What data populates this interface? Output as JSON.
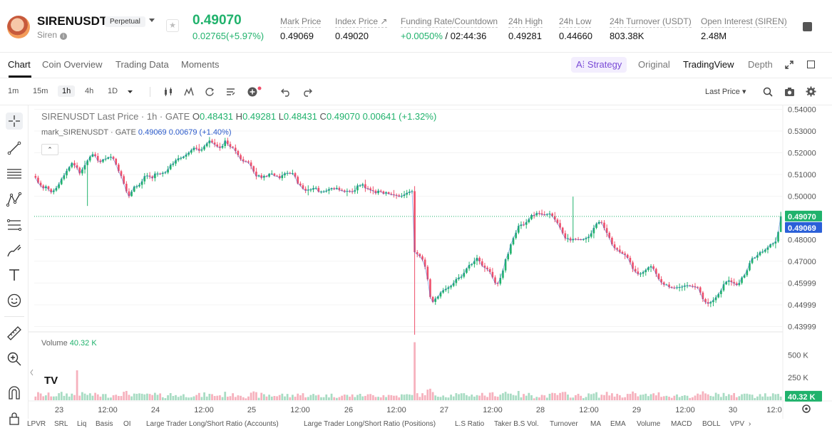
{
  "header": {
    "symbol": "SIRENUSDT",
    "subtitle": "Siren",
    "info_glyph": "i",
    "badge": "Perpetual",
    "favorite_glyph": "★",
    "last_price": "0.49070",
    "change": "0.02765(+5.97%)",
    "stats": [
      {
        "label": "Mark Price",
        "value": "0.49069"
      },
      {
        "label": "Index Price ↗",
        "value": "0.49020"
      },
      {
        "label": "Funding Rate/Countdown",
        "value": "+0.0050%",
        "value2": " / 02:44:36"
      },
      {
        "label": "24h High",
        "value": "0.49281"
      },
      {
        "label": "24h Low",
        "value": "0.44660"
      },
      {
        "label": "24h Turnover (USDT)",
        "value": "803.38K"
      },
      {
        "label": "Open Interest (SIREN)",
        "value": "2.48M"
      }
    ]
  },
  "tabs": {
    "items": [
      "Chart",
      "Coin Overview",
      "Trading Data",
      "Moments"
    ],
    "strategy": "A⁞ Strategy",
    "views": [
      "Original",
      "TradingView",
      "Depth"
    ]
  },
  "toolbar": {
    "timeframes": [
      "1m",
      "15m",
      "1h",
      "4h",
      "1D"
    ],
    "price_source": "Last Price ▾",
    "icons": [
      "candles-icon",
      "indicators-icon",
      "replay-icon",
      "template-icon",
      "add-indicator-icon",
      "undo-icon",
      "redo-icon",
      "search-icon",
      "camera-icon",
      "settings-icon"
    ]
  },
  "legend": {
    "title": "SIRENUSDT Last Price · 1h · GATE",
    "o": "0.48431",
    "h": "0.49281",
    "l": "0.48431",
    "c": "0.49070",
    "chg": "0.00641 (+1.32%)",
    "mark_name": "mark_SIRENUSDT · GATE",
    "mark_val": "0.49069",
    "mark_chg": "0.00679 (+1.40%)",
    "collapse": "⌃",
    "volume_label": "Volume",
    "volume_value": "40.32 K",
    "logo": "TV"
  },
  "chart_data": {
    "type": "candlestick",
    "title": "SIRENUSDT Last Price · 1h · GATE",
    "price_axis": {
      "ticks": [
        "0.54000",
        "0.53000",
        "0.52000",
        "0.51000",
        "0.50000",
        "0.48000",
        "0.47000",
        "0.45999",
        "0.44999",
        "0.43999"
      ],
      "range": [
        0.4362,
        0.5418
      ],
      "last_price_tag": "0.49070",
      "mark_price_tag": "0.49069",
      "last_price_color": "#20b26c",
      "mark_price_color": "#2a5fd8"
    },
    "volume_axis": {
      "ticks": [
        "500 K",
        "250 K"
      ],
      "range": [
        0,
        660
      ],
      "unit": "K",
      "current_tag": "40.32 K"
    },
    "time_axis": [
      "23",
      "12:00",
      "24",
      "12:00",
      "25",
      "12:00",
      "26",
      "12:00",
      "27",
      "12:00",
      "28",
      "12:00",
      "29",
      "12:00",
      "30",
      "12:0"
    ],
    "colors": {
      "up": "#20b26c",
      "down": "#ef4f6b",
      "up_vol": "#a8dcc3",
      "down_vol": "#f6b1bd"
    },
    "close_series": [
      0.5085,
      0.5062,
      0.5049,
      0.5037,
      0.5045,
      0.5032,
      0.5019,
      0.5026,
      0.5038,
      0.5055,
      0.5079,
      0.5096,
      0.5117,
      0.5134,
      0.5153,
      0.5142,
      0.5131,
      0.5105,
      0.5123,
      0.5143,
      0.5164,
      0.5182,
      0.5193,
      0.5185,
      0.5164,
      0.5158,
      0.5169,
      0.5172,
      0.5179,
      0.5181,
      0.5172,
      0.5145,
      0.5115,
      0.5092,
      0.5057,
      0.5022,
      0.5,
      0.5021,
      0.5044,
      0.5045,
      0.5052,
      0.5068,
      0.5092,
      0.5095,
      0.5091,
      0.5083,
      0.5104,
      0.5104,
      0.5103,
      0.5107,
      0.5109,
      0.5124,
      0.5144,
      0.515,
      0.5165,
      0.5174,
      0.5176,
      0.5182,
      0.5191,
      0.52,
      0.5212,
      0.5223,
      0.5219,
      0.521,
      0.5215,
      0.523,
      0.5243,
      0.5256,
      0.5247,
      0.5238,
      0.5229,
      0.5223,
      0.5231,
      0.5256,
      0.524,
      0.5227,
      0.5223,
      0.5208,
      0.5189,
      0.517,
      0.5161,
      0.516,
      0.5155,
      0.5138,
      0.5113,
      0.5092,
      0.5096,
      0.5085,
      0.5093,
      0.509,
      0.5103,
      0.5104,
      0.5094,
      0.5093,
      0.5083,
      0.5096,
      0.5105,
      0.5107,
      0.5106,
      0.5106,
      0.5089,
      0.5058,
      0.505,
      0.5034,
      0.5026,
      0.503,
      0.503,
      0.5037,
      0.5038,
      0.5021,
      0.5021,
      0.5021,
      0.5025,
      0.5032,
      0.5037,
      0.5033,
      0.5038,
      0.5029,
      0.5026,
      0.5021,
      0.5024,
      0.5023,
      0.5021,
      0.5027,
      0.5049,
      0.5049,
      0.5055,
      0.5037,
      0.5036,
      0.5028,
      0.5025,
      0.5014,
      0.5025,
      0.5022,
      0.5012,
      0.5018,
      0.5011,
      0.5008,
      0.5006,
      0.5004,
      0.4999,
      0.5001,
      0.5007,
      0.5015,
      0.502,
      0.5023,
      0.4742,
      0.4734,
      0.4723,
      0.4708,
      0.4675,
      0.4617,
      0.4536,
      0.4513,
      0.4528,
      0.4538,
      0.4556,
      0.4567,
      0.4573,
      0.458,
      0.4587,
      0.46,
      0.4618,
      0.4625,
      0.4629,
      0.4647,
      0.4667,
      0.4683,
      0.4687,
      0.4701,
      0.4716,
      0.47,
      0.468,
      0.4671,
      0.4664,
      0.4651,
      0.4626,
      0.46,
      0.4597,
      0.4624,
      0.4658,
      0.4709,
      0.4735,
      0.4778,
      0.4807,
      0.4832,
      0.4863,
      0.4869,
      0.4868,
      0.488,
      0.4894,
      0.4913,
      0.4912,
      0.4922,
      0.4921,
      0.4916,
      0.4915,
      0.4917,
      0.492,
      0.4908,
      0.4892,
      0.4876,
      0.4855,
      0.4829,
      0.4806,
      0.4806,
      0.4797,
      0.4803,
      0.4802,
      0.4801,
      0.48,
      0.4802,
      0.4807,
      0.4813,
      0.4829,
      0.4854,
      0.4873,
      0.4881,
      0.4878,
      0.4853,
      0.4831,
      0.4808,
      0.4778,
      0.4761,
      0.4754,
      0.4743,
      0.4736,
      0.473,
      0.4716,
      0.4695,
      0.4665,
      0.4653,
      0.4642,
      0.4643,
      0.465,
      0.466,
      0.4672,
      0.4677,
      0.4665,
      0.4642,
      0.4618,
      0.4603,
      0.4593,
      0.4593,
      0.4582,
      0.4579,
      0.4578,
      0.458,
      0.4581,
      0.4583,
      0.4588,
      0.4589,
      0.4587,
      0.4585,
      0.4582,
      0.458,
      0.4556,
      0.4526,
      0.4512,
      0.4506,
      0.4512,
      0.4521,
      0.4534,
      0.4549,
      0.4566,
      0.4594,
      0.4606,
      0.4612,
      0.4605,
      0.4599,
      0.4591,
      0.46,
      0.4625,
      0.4636,
      0.4659,
      0.4692,
      0.4714,
      0.4717,
      0.4728,
      0.4742,
      0.4744,
      0.4753,
      0.4764,
      0.4778,
      0.4782,
      0.4791,
      0.4835,
      0.4907
    ],
    "last_price": 0.4907
  }
}
